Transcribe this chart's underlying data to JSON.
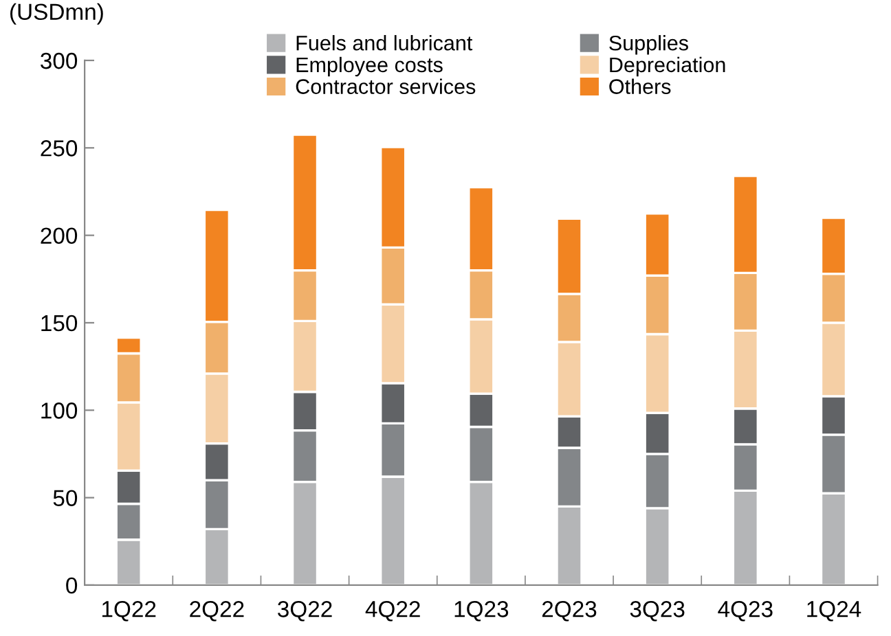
{
  "chart_data": {
    "type": "bar",
    "stacked": true,
    "ylabel": "(USDmn)",
    "categories": [
      "1Q22",
      "2Q22",
      "3Q22",
      "4Q22",
      "1Q23",
      "2Q23",
      "3Q23",
      "4Q23",
      "1Q24"
    ],
    "series": [
      {
        "name": "Fuels and lubricant",
        "color": "#b4b5b7",
        "values": [
          26,
          32,
          59,
          62,
          59,
          45,
          44,
          54,
          52.5
        ]
      },
      {
        "name": "Supplies",
        "color": "#838689",
        "values": [
          20.5,
          28,
          29.5,
          30.5,
          31.5,
          33.5,
          31,
          26.5,
          33.5
        ]
      },
      {
        "name": "Employee costs",
        "color": "#616366",
        "values": [
          19,
          21,
          22,
          23,
          19,
          18,
          23.5,
          20.5,
          22
        ]
      },
      {
        "name": "Depreciation",
        "color": "#f5cfa5",
        "values": [
          39,
          40,
          40.5,
          45,
          42.5,
          42.5,
          45,
          44.5,
          42
        ]
      },
      {
        "name": "Contractor services",
        "color": "#f0b06b",
        "values": [
          28,
          29.5,
          29,
          32.5,
          28,
          27.5,
          33.5,
          33,
          28
        ]
      },
      {
        "name": "Others",
        "color": "#f28421",
        "values": [
          9,
          64,
          77.5,
          57.5,
          47.5,
          43,
          35.5,
          55.5,
          32
        ]
      }
    ],
    "ylim": [
      0,
      300
    ],
    "yticks": [
      0,
      50,
      100,
      150,
      200,
      250,
      300
    ],
    "grid": false,
    "legend": "top"
  }
}
